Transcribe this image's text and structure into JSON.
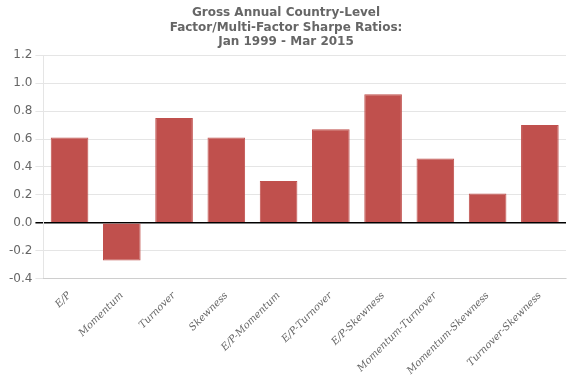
{
  "chart_data": {
    "type": "bar",
    "title": "Gross Annual Country-Level\nFactor/Multi-Factor Sharpe Ratios:\nJan 1999 - Mar 2015",
    "categories": [
      "E/P",
      "Momentum",
      "Turnover",
      "Skewness",
      "E/P-Momentum",
      "E/P-Turnover",
      "E/P-Skewness",
      "Momentum-Turnover",
      "Momentum-Skewness",
      "Turnover-Skewness"
    ],
    "values": [
      0.61,
      -0.27,
      0.75,
      0.61,
      0.3,
      0.67,
      0.92,
      0.46,
      0.21,
      0.7
    ],
    "color": "#C0504D",
    "ylim": [
      -0.4,
      1.2
    ],
    "yticks": [
      -0.4,
      -0.2,
      {
        "value": 0,
        "label": "0.0"
      },
      0.2,
      0.4,
      0.6,
      0.8,
      {
        "value": 1,
        "label": "1.0"
      },
      1.2
    ],
    "grid": true
  }
}
